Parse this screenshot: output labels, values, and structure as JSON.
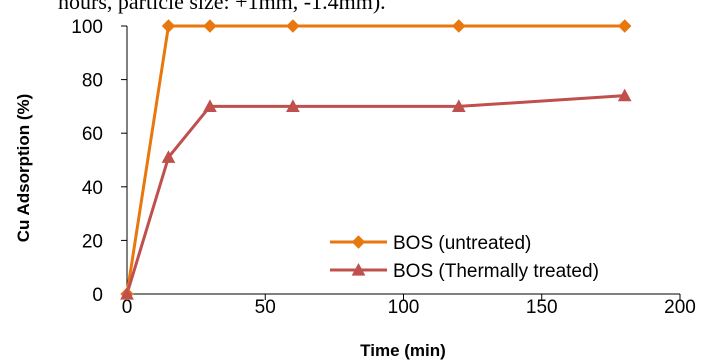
{
  "caption_fragment": "hours, particle size: +1mm, -1.4mm).",
  "chart_data": {
    "type": "line",
    "title": "",
    "xlabel": "Time (min)",
    "ylabel": "Cu Adsorption (%)",
    "xlim": [
      0,
      200
    ],
    "ylim": [
      0,
      100
    ],
    "xticks": [
      0,
      50,
      100,
      150,
      200
    ],
    "yticks": [
      0,
      20,
      40,
      60,
      80,
      100
    ],
    "grid": false,
    "legend_position": "bottom-right",
    "series": [
      {
        "name": "BOS (untreated)",
        "color": "#E8770E",
        "marker": "diamond",
        "x": [
          0,
          15,
          30,
          60,
          120,
          180
        ],
        "y": [
          0,
          100,
          100,
          100,
          100,
          100
        ]
      },
      {
        "name": "BOS (Thermally treated)",
        "color": "#C0504D",
        "marker": "triangle",
        "x": [
          0,
          15,
          30,
          60,
          120,
          180
        ],
        "y": [
          0,
          51,
          70,
          70,
          70,
          74
        ]
      }
    ]
  }
}
